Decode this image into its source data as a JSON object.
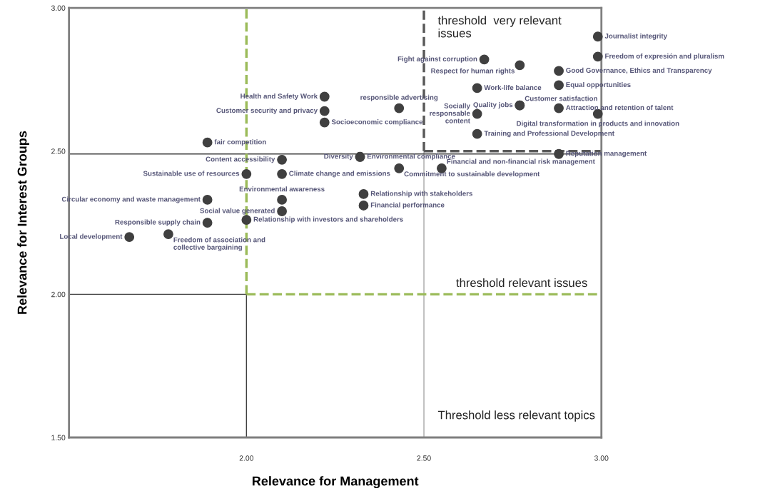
{
  "chart_data": {
    "type": "scatter",
    "xlabel": "Relevance for Management",
    "ylabel": "Relevance for Interest Groups",
    "xlim": [
      1.5,
      3.0
    ],
    "ylim": [
      1.5,
      3.0
    ],
    "xticks": [
      {
        "value": 2.0,
        "label": "2.00"
      },
      {
        "value": 2.5,
        "label": "2.50"
      },
      {
        "value": 3.0,
        "label": "3.00"
      }
    ],
    "yticks": [
      {
        "value": 1.5,
        "label": "1.50"
      },
      {
        "value": 2.0,
        "label": "2.00"
      },
      {
        "value": 2.5,
        "label": "2.50"
      },
      {
        "value": 3.0,
        "label": "3.00"
      }
    ],
    "marker": "circle",
    "grid": false,
    "series": [
      {
        "color": "#404040",
        "x": [
          2.99,
          2.99,
          2.88,
          2.77,
          2.67,
          2.88,
          2.65,
          2.77,
          2.77,
          2.88,
          2.99,
          2.65,
          2.65,
          2.88,
          2.43,
          2.22,
          2.22,
          2.22,
          2.1,
          2.32,
          2.32,
          2.1,
          2.43,
          2.55,
          2.33,
          2.1,
          2.33,
          2.1,
          1.89,
          2.0,
          1.89,
          1.89,
          2.0,
          1.78,
          1.67
        ],
        "values": [
          2.9,
          2.83,
          2.78,
          2.8,
          2.82,
          2.73,
          2.72,
          2.66,
          2.66,
          2.65,
          2.63,
          2.63,
          2.56,
          2.49,
          2.65,
          2.69,
          2.64,
          2.6,
          2.47,
          2.48,
          2.48,
          2.42,
          2.44,
          2.44,
          2.35,
          2.33,
          2.31,
          2.29,
          2.53,
          2.42,
          2.33,
          2.25,
          2.26,
          2.21,
          2.2
        ],
        "value_labels": [
          "Journalist integrity",
          "Freedom of expresión and pluralism",
          "Good Governance, Ethics and Transparency",
          "Respect for human rights",
          "Fight against corruption",
          "Equal opportunities",
          "Work-life balance",
          "Quality jobs",
          "Customer satisfaction",
          "Attraction and retention of talent",
          "Digital transformation in products and innovation",
          "Socially\nresponsable\ncontent",
          "Training and Professional Development",
          "Reputation management",
          "responsible advertising",
          "Health and Safety Work",
          "Customer security and privacy",
          "Socioeconomic compliance",
          "Content accessibility",
          "Environmental compliance",
          "Diversity",
          "Climate change and emissions",
          "Commitment to sustainable development",
          "Financial and non-financial risk management",
          "Relationship with stakeholders",
          "Environmental awareness",
          "Financial performance",
          "Social value generated",
          "fair competition",
          "Sustainable use of resources",
          "Circular economy and waste management",
          "Responsible supply chain",
          "Relationship with investors and shareholders",
          "Freedom of association and\ncollective bargaining",
          "Local development"
        ]
      }
    ],
    "ref_lines": [
      {
        "axis": "x",
        "value": 2.0,
        "color": "#404040",
        "line_style": "solid"
      },
      {
        "axis": "x",
        "value": 2.5,
        "color": "#a6a6a6",
        "line_style": "solid",
        "label": "Threshold less relevant topics"
      },
      {
        "axis": "y",
        "value": 2.49,
        "color": "#404040",
        "line_style": "solid"
      },
      {
        "axis": "y",
        "value": 2.0,
        "color": "#404040",
        "line_style": "solid"
      },
      {
        "axis": "x",
        "value": 2.0,
        "color": "#9bbb59",
        "line_style": "dashed"
      },
      {
        "axis": "y",
        "value": 2.0,
        "color": "#9bbb59",
        "line_style": "dashed",
        "label": "threshold relevant issues"
      },
      {
        "axis": "x",
        "value": 2.5,
        "color": "#595959",
        "line_style": "dashed",
        "label": "threshold  very relevant\nissues"
      },
      {
        "axis": "y",
        "value": 2.5,
        "color": "#595959",
        "line_style": "dashed"
      }
    ]
  }
}
